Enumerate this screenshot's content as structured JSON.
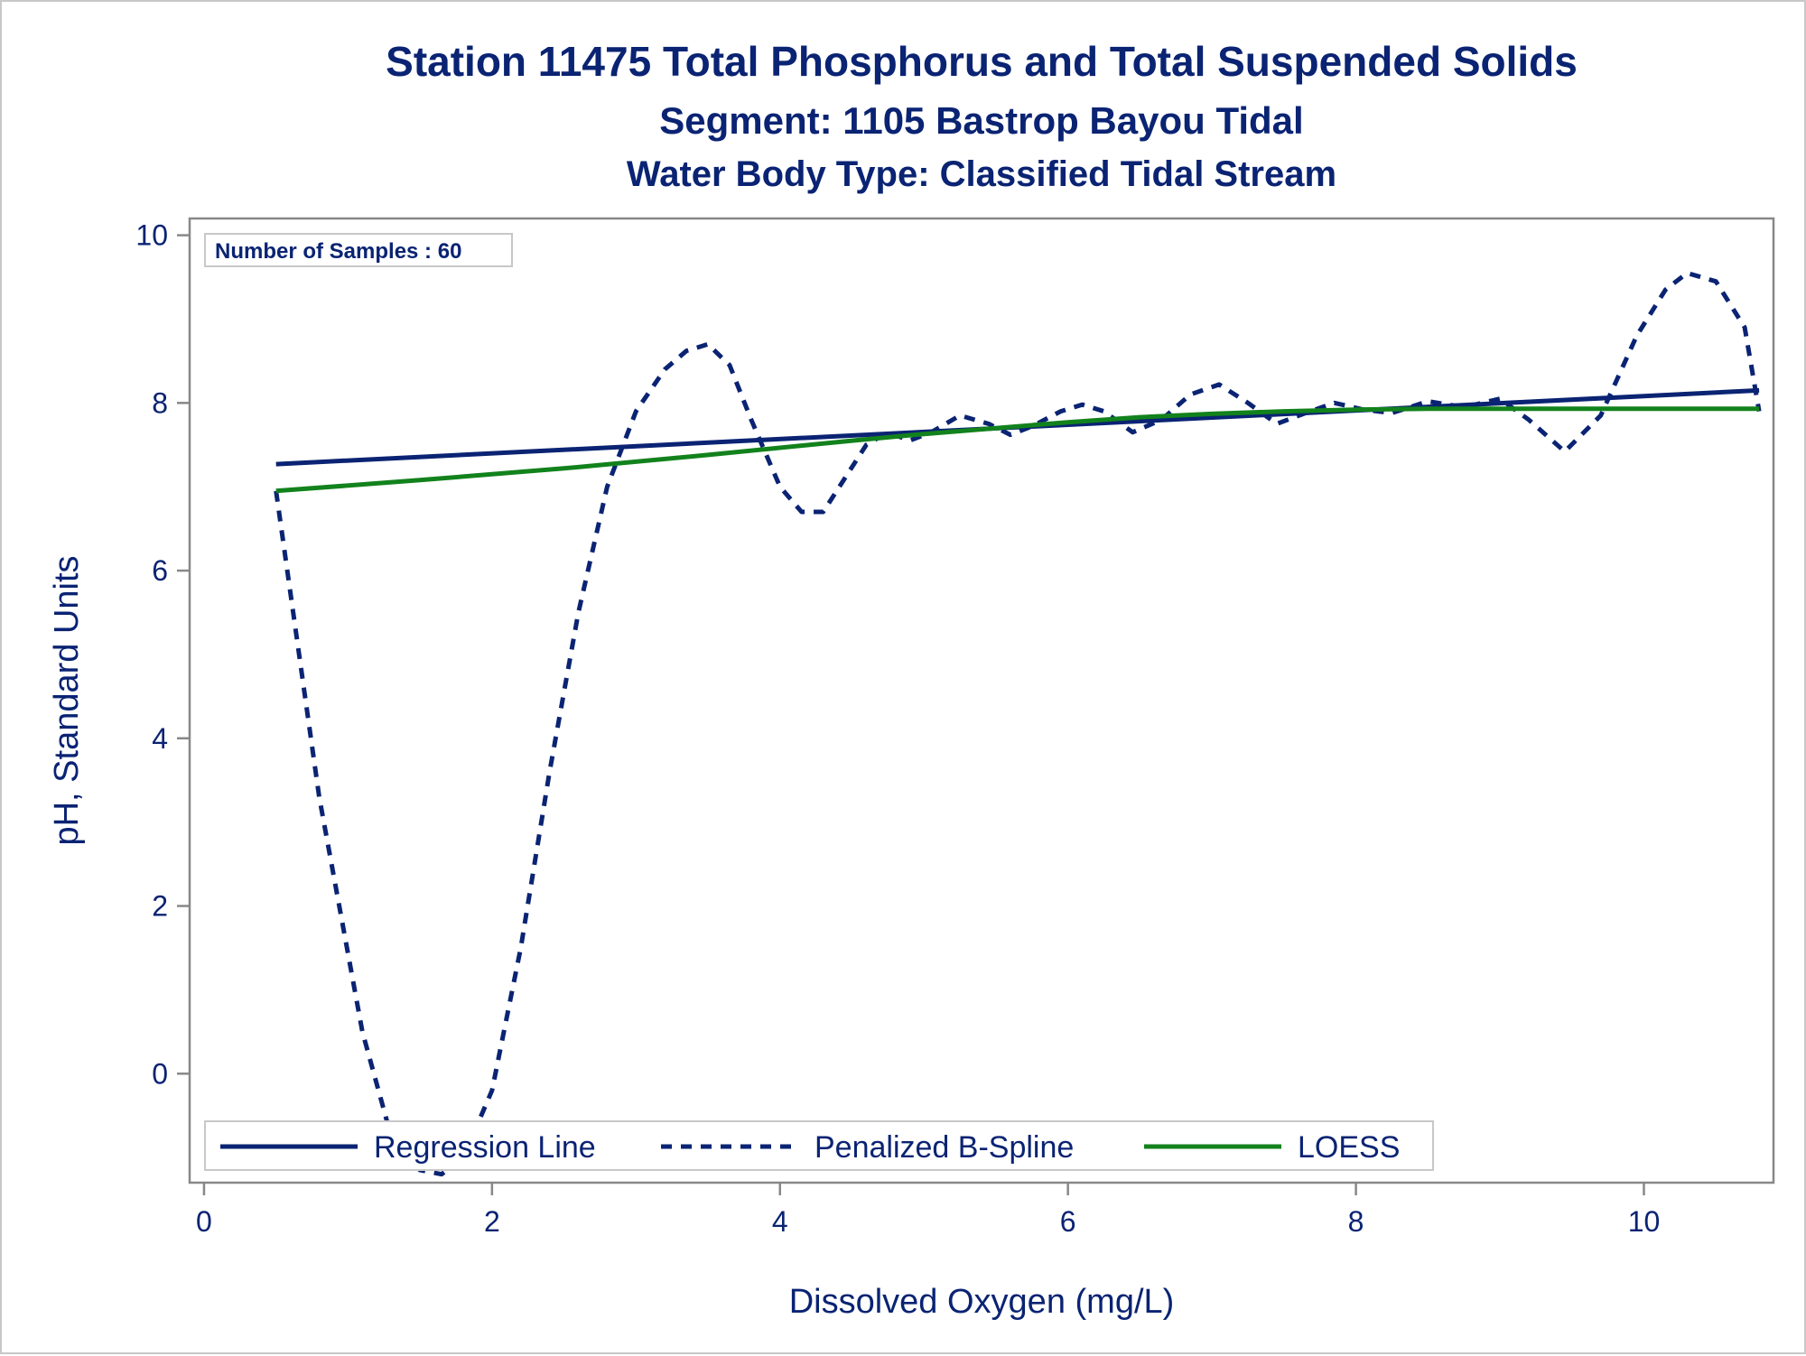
{
  "titles": {
    "line1": "Station 11475  Total Phosphorus and Total Suspended Solids",
    "line2": "Segment: 1105  Bastrop Bayou Tidal",
    "line3": "Water Body Type: Classified Tidal Stream"
  },
  "inset": {
    "text": "Number of Samples : 60"
  },
  "colors": {
    "text": "#0a2373",
    "regression": "#0a2373",
    "spline": "#0a2373",
    "loess": "#12821c",
    "frame": "#888888"
  },
  "chart_data": {
    "type": "line",
    "title": "Station 11475  Total Phosphorus and Total Suspended Solids",
    "xlabel": "Dissolved Oxygen (mg/L)",
    "ylabel": "pH, Standard Units",
    "xlim": [
      -0.1,
      10.9
    ],
    "ylim": [
      -1.3,
      10.2
    ],
    "x_ticks": [
      0,
      2,
      4,
      6,
      8,
      10
    ],
    "y_ticks": [
      0,
      2,
      4,
      6,
      8,
      10
    ],
    "grid": false,
    "legend_position": "bottom-left inside",
    "series": [
      {
        "name": "Regression Line",
        "style": "solid",
        "x": [
          0.5,
          10.8
        ],
        "y": [
          7.27,
          8.15
        ]
      },
      {
        "name": "Penalized B-Spline",
        "style": "dashed",
        "x": [
          0.5,
          0.8,
          1.1,
          1.3,
          1.5,
          1.65,
          1.8,
          2.0,
          2.2,
          2.4,
          2.6,
          2.8,
          3.0,
          3.2,
          3.35,
          3.5,
          3.65,
          3.8,
          4.0,
          4.15,
          4.3,
          4.45,
          4.6,
          4.75,
          4.9,
          5.05,
          5.25,
          5.45,
          5.6,
          5.75,
          5.95,
          6.1,
          6.25,
          6.45,
          6.65,
          6.85,
          7.05,
          7.25,
          7.45,
          7.65,
          7.85,
          8.05,
          8.25,
          8.5,
          8.75,
          9.0,
          9.2,
          9.45,
          9.7,
          9.95,
          10.15,
          10.3,
          10.5,
          10.7,
          10.8
        ],
        "y": [
          6.95,
          3.3,
          0.5,
          -0.75,
          -1.15,
          -1.2,
          -1.0,
          -0.2,
          1.5,
          3.6,
          5.5,
          7.0,
          7.9,
          8.4,
          8.62,
          8.7,
          8.45,
          7.8,
          7.0,
          6.7,
          6.7,
          7.1,
          7.5,
          7.65,
          7.55,
          7.65,
          7.85,
          7.75,
          7.62,
          7.72,
          7.9,
          7.98,
          7.9,
          7.65,
          7.8,
          8.1,
          8.22,
          8.0,
          7.75,
          7.88,
          8.0,
          7.92,
          7.88,
          8.02,
          7.95,
          8.05,
          7.8,
          7.42,
          7.85,
          8.8,
          9.35,
          9.55,
          9.45,
          8.9,
          7.9
        ]
      },
      {
        "name": "LOESS",
        "style": "solid",
        "x": [
          0.5,
          1.5,
          2.5,
          3.5,
          4.5,
          5.0,
          5.5,
          6.0,
          6.5,
          7.0,
          7.5,
          8.0,
          8.5,
          9.0,
          9.5,
          10.0,
          10.5,
          10.8
        ],
        "y": [
          6.95,
          7.08,
          7.22,
          7.38,
          7.55,
          7.63,
          7.7,
          7.77,
          7.83,
          7.87,
          7.9,
          7.92,
          7.93,
          7.93,
          7.93,
          7.93,
          7.93,
          7.93
        ]
      }
    ]
  }
}
